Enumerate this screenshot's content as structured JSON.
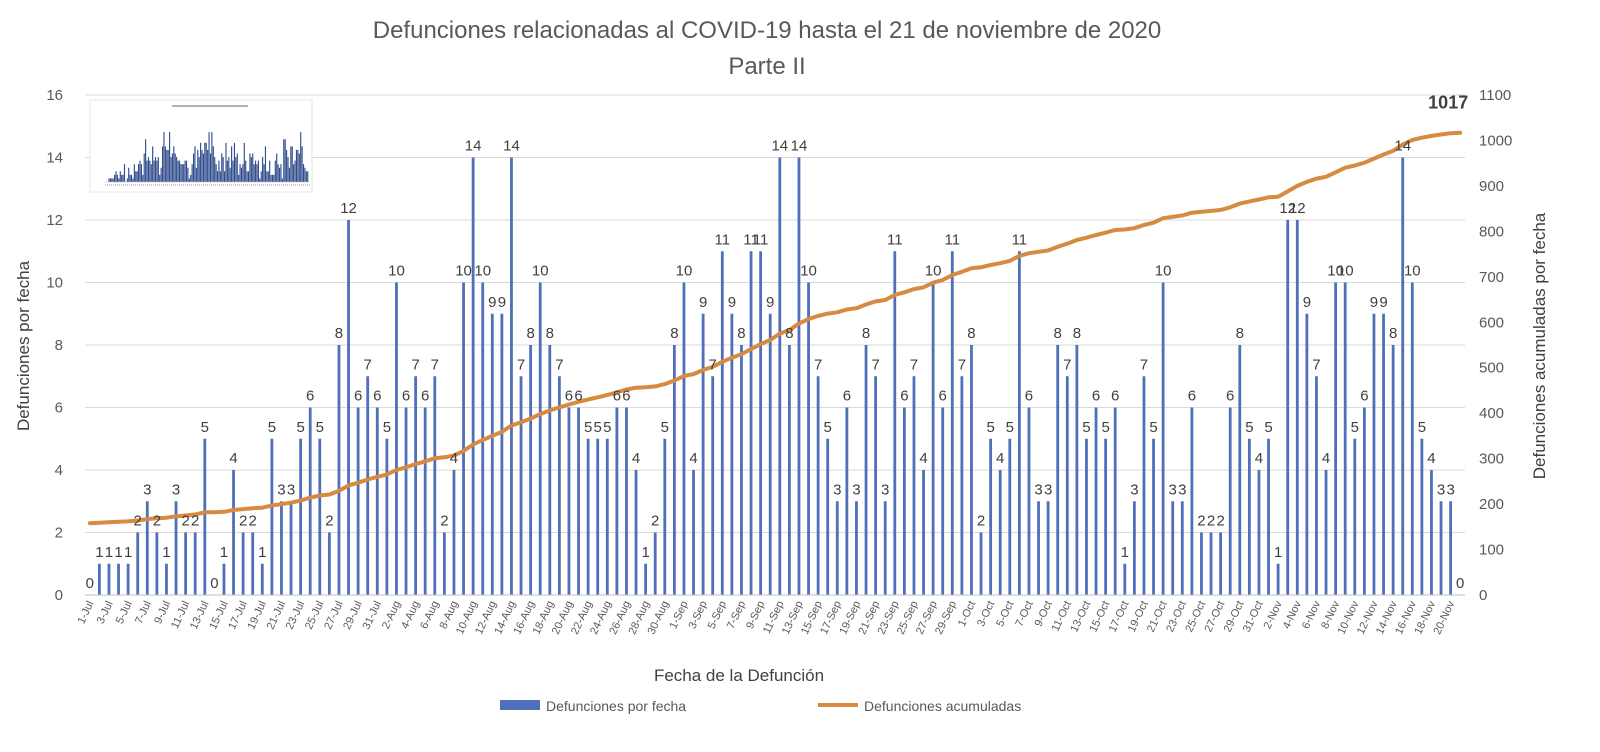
{
  "chart_data": {
    "type": "bar+line",
    "title": "Defunciones relacionadas al COVID-19 hasta el 21 de noviembre de 2020",
    "subtitle": "Parte II",
    "xlabel": "Fecha de la Defunción",
    "ylabel": "Defunciones por fecha",
    "y2label": "Defunciones acumuladas por fecha",
    "ylim": [
      0,
      16
    ],
    "y2lim": [
      0,
      1100
    ],
    "yticks": [
      0,
      2,
      4,
      6,
      8,
      10,
      12,
      14,
      16
    ],
    "y2ticks": [
      0,
      100,
      200,
      300,
      400,
      500,
      600,
      700,
      800,
      900,
      1000,
      1100
    ],
    "grid": true,
    "legend_position": "bottom",
    "colors": {
      "bars": "#4f6fba",
      "line": "#d68a42"
    },
    "x": [
      "1-Jul",
      "2-Jul",
      "3-Jul",
      "4-Jul",
      "5-Jul",
      "6-Jul",
      "7-Jul",
      "8-Jul",
      "9-Jul",
      "10-Jul",
      "11-Jul",
      "12-Jul",
      "13-Jul",
      "14-Jul",
      "15-Jul",
      "16-Jul",
      "17-Jul",
      "18-Jul",
      "19-Jul",
      "20-Jul",
      "21-Jul",
      "22-Jul",
      "23-Jul",
      "24-Jul",
      "25-Jul",
      "26-Jul",
      "27-Jul",
      "28-Jul",
      "29-Jul",
      "30-Jul",
      "31-Jul",
      "1-Aug",
      "2-Aug",
      "3-Aug",
      "4-Aug",
      "5-Aug",
      "6-Aug",
      "7-Aug",
      "8-Aug",
      "9-Aug",
      "10-Aug",
      "11-Aug",
      "12-Aug",
      "13-Aug",
      "14-Aug",
      "15-Aug",
      "16-Aug",
      "17-Aug",
      "18-Aug",
      "19-Aug",
      "20-Aug",
      "21-Aug",
      "22-Aug",
      "23-Aug",
      "24-Aug",
      "25-Aug",
      "26-Aug",
      "27-Aug",
      "28-Aug",
      "29-Aug",
      "30-Aug",
      "31-Aug",
      "1-Sep",
      "2-Sep",
      "3-Sep",
      "4-Sep",
      "5-Sep",
      "6-Sep",
      "7-Sep",
      "8-Sep",
      "9-Sep",
      "10-Sep",
      "11-Sep",
      "12-Sep",
      "13-Sep",
      "14-Sep",
      "15-Sep",
      "16-Sep",
      "17-Sep",
      "18-Sep",
      "19-Sep",
      "20-Sep",
      "21-Sep",
      "22-Sep",
      "23-Sep",
      "24-Sep",
      "25-Sep",
      "26-Sep",
      "27-Sep",
      "28-Sep",
      "29-Sep",
      "30-Sep",
      "1-Oct",
      "2-Oct",
      "3-Oct",
      "4-Oct",
      "5-Oct",
      "6-Oct",
      "7-Oct",
      "8-Oct",
      "9-Oct",
      "10-Oct",
      "11-Oct",
      "12-Oct",
      "13-Oct",
      "14-Oct",
      "15-Oct",
      "16-Oct",
      "17-Oct",
      "18-Oct",
      "19-Oct",
      "20-Oct",
      "21-Oct",
      "22-Oct",
      "23-Oct",
      "24-Oct",
      "25-Oct",
      "26-Oct",
      "27-Oct",
      "28-Oct",
      "29-Oct",
      "30-Oct",
      "31-Oct",
      "1-Nov",
      "2-Nov",
      "3-Nov",
      "4-Nov",
      "5-Nov",
      "6-Nov",
      "7-Nov",
      "8-Nov",
      "9-Nov",
      "10-Nov",
      "11-Nov",
      "12-Nov",
      "13-Nov",
      "14-Nov",
      "15-Nov",
      "16-Nov",
      "17-Nov",
      "18-Nov",
      "19-Nov",
      "20-Nov",
      "21-Nov"
    ],
    "series": [
      {
        "name": "Defunciones por fecha",
        "type": "bar",
        "axis": "left",
        "values": [
          0,
          1,
          1,
          1,
          1,
          2,
          3,
          2,
          1,
          3,
          2,
          2,
          5,
          0,
          1,
          4,
          2,
          2,
          1,
          5,
          3,
          3,
          5,
          6,
          5,
          2,
          8,
          12,
          6,
          7,
          6,
          5,
          10,
          6,
          7,
          6,
          7,
          2,
          4,
          10,
          14,
          10,
          9,
          9,
          14,
          7,
          8,
          10,
          8,
          7,
          6,
          6,
          5,
          5,
          5,
          6,
          6,
          4,
          1,
          2,
          5,
          8,
          10,
          4,
          9,
          7,
          11,
          9,
          8,
          11,
          11,
          9,
          14,
          8,
          14,
          10,
          7,
          5,
          3,
          6,
          3,
          8,
          7,
          3,
          11,
          6,
          7,
          4,
          10,
          6,
          11,
          7,
          8,
          2,
          5,
          4,
          5,
          11,
          6,
          3,
          3,
          8,
          7,
          8,
          5,
          6,
          5,
          6,
          1,
          3,
          7,
          5,
          10,
          3,
          3,
          6,
          2,
          2,
          2,
          6,
          8,
          5,
          4,
          5,
          1,
          12,
          12,
          9,
          7,
          4,
          10,
          10,
          5,
          6,
          9,
          9,
          8,
          14,
          10,
          5,
          4,
          3,
          3,
          0
        ]
      },
      {
        "name": "Defunciones acumuladas",
        "type": "line",
        "axis": "right",
        "final_label": "1017",
        "values": [
          158,
          159,
          160,
          161,
          162,
          164,
          167,
          169,
          170,
          173,
          175,
          177,
          182,
          182,
          183,
          187,
          189,
          191,
          192,
          197,
          200,
          203,
          208,
          214,
          219,
          221,
          229,
          241,
          247,
          254,
          260,
          265,
          275,
          281,
          288,
          294,
          301,
          303,
          307,
          317,
          331,
          341,
          350,
          359,
          373,
          380,
          388,
          398,
          406,
          413,
          419,
          425,
          430,
          435,
          440,
          446,
          452,
          456,
          457,
          459,
          464,
          472,
          482,
          486,
          495,
          502,
          513,
          522,
          530,
          541,
          552,
          561,
          575,
          583,
          597,
          607,
          614,
          619,
          622,
          628,
          631,
          639,
          646,
          649,
          660,
          666,
          673,
          677,
          687,
          693,
          704,
          711,
          719,
          721,
          726,
          730,
          735,
          746,
          752,
          755,
          758,
          766,
          773,
          781,
          786,
          792,
          797,
          803,
          804,
          807,
          814,
          819,
          829,
          832,
          835,
          841,
          843,
          845,
          847,
          853,
          861,
          866,
          870,
          875,
          876,
          888,
          900,
          909,
          916,
          920,
          930,
          940,
          945,
          951,
          960,
          969,
          977,
          991,
          1001,
          1006,
          1010,
          1013,
          1016,
          1017
        ]
      }
    ]
  }
}
